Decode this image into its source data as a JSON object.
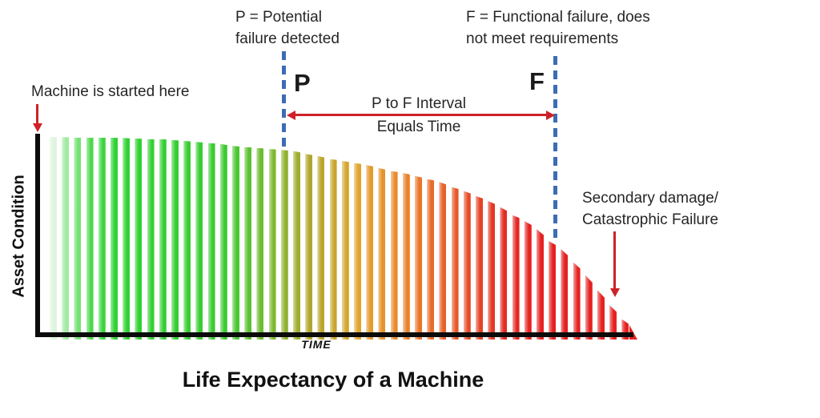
{
  "title": "Life Expectancy of a Machine",
  "y_axis_label": "Asset Condition",
  "x_axis_label": "TIME",
  "annotations": {
    "machine_start": "Machine is started here",
    "p_definition": [
      "P = Potential",
      "failure detected"
    ],
    "p_marker": "P",
    "f_definition": [
      "F = Functional failure, does",
      "not meet requirements"
    ],
    "f_marker": "F",
    "pf_interval": [
      "P to F Interval",
      "Equals Time"
    ],
    "secondary_damage": [
      "Secondary damage/",
      "Catastrophic Failure"
    ]
  },
  "colors": {
    "marker_dashed_blue": "#3d6cb4",
    "annotation_arrow_red": "#ce2127",
    "axis_black": "#0b0b0b",
    "text_dark": "#262626",
    "bar_green": "#2fd232",
    "bar_olive": "#b2a52b",
    "bar_orange": "#e8882b",
    "bar_red": "#e52121"
  },
  "chart_data": {
    "type": "bar",
    "title": "Life Expectancy of a Machine",
    "xlabel": "TIME",
    "ylabel": "Asset Condition",
    "description": "P-F curve: asset condition degrades slowly after startup, a potential failure is detectable at P, functional failure occurs at F, ending in secondary damage / catastrophic failure; drawn as 48 vertical stripes colored green to yellow to orange to red following the declining curve.",
    "bar_count": 48,
    "ylim": [
      0,
      100
    ],
    "condition_pct": [
      100,
      99.9,
      99.8,
      99.8,
      99.7,
      99.6,
      99.5,
      99.2,
      99.0,
      99.0,
      98.5,
      98.0,
      97.5,
      97.0,
      96.5,
      95.5,
      95.0,
      94.5,
      94.0,
      93.5,
      93.0,
      91.5,
      90.5,
      89.0,
      88.0,
      87.0,
      86.0,
      84.5,
      83.0,
      82.0,
      80.5,
      79.0,
      77.5,
      75.0,
      73.0,
      70.5,
      68.0,
      65.0,
      61.0,
      58.0,
      54.0,
      48.0,
      44.0,
      37.5,
      31.0,
      23.5,
      16.0,
      9.0
    ],
    "p_marker_bar_index": 19,
    "f_marker_bar_index": 41,
    "color_stops": [
      {
        "t": 0.0,
        "color": "#dff4df"
      },
      {
        "t": 0.02,
        "color": "#a5eba5"
      },
      {
        "t": 0.06,
        "color": "#4fd94f"
      },
      {
        "t": 0.1,
        "color": "#2fd232"
      },
      {
        "t": 0.3,
        "color": "#3cca31"
      },
      {
        "t": 0.38,
        "color": "#7cb832"
      },
      {
        "t": 0.45,
        "color": "#b2a52b"
      },
      {
        "t": 0.53,
        "color": "#e0a52e"
      },
      {
        "t": 0.6,
        "color": "#e8882b"
      },
      {
        "t": 0.68,
        "color": "#e76229"
      },
      {
        "t": 0.74,
        "color": "#e54426"
      },
      {
        "t": 0.79,
        "color": "#e42b23"
      },
      {
        "t": 0.84,
        "color": "#e52121"
      },
      {
        "t": 1.0,
        "color": "#e52121"
      }
    ]
  }
}
